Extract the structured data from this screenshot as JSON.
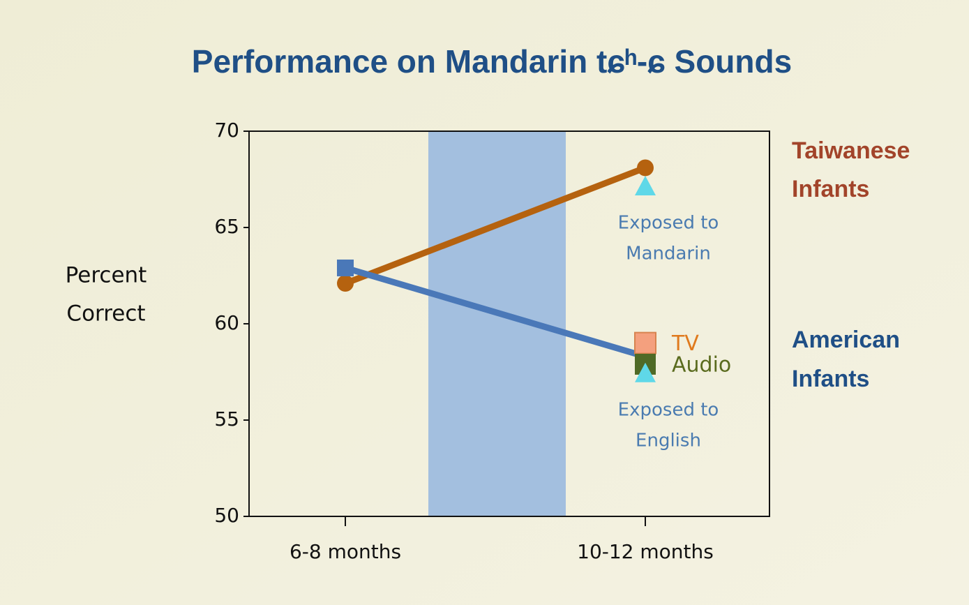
{
  "chart_data": {
    "type": "line",
    "title": "Performance on Mandarin tɕʰ-ɕ Sounds",
    "ylabel_lines": [
      "Percent",
      "Correct"
    ],
    "categories": [
      "6-8 months",
      "10-12 months"
    ],
    "ylim": [
      50,
      70
    ],
    "yticks": [
      50,
      55,
      60,
      65,
      70
    ],
    "grid": false,
    "series": [
      {
        "name_lines": [
          "Taiwanese",
          "Infants"
        ],
        "color": "#b5620f",
        "label_color": "#a2442a",
        "values": [
          62.1,
          68.1
        ]
      },
      {
        "name_lines": [
          "American",
          "Infants"
        ],
        "color": "#4a78b8",
        "label_color": "#1f4f86",
        "values": [
          62.9,
          58.3
        ]
      }
    ],
    "points": [
      {
        "label": "TV",
        "category": 1,
        "value": 59.0,
        "color": "#f4a07e",
        "label_color": "#e07a1e",
        "marker": "square"
      },
      {
        "label": "Audio",
        "category": 1,
        "value": 57.9,
        "color": "#4f6a26",
        "label_color": "#5a6b1e",
        "marker": "square"
      },
      {
        "note_lines": [
          "Exposed to",
          "Mandarin"
        ],
        "category": 1,
        "value": 67.1,
        "color": "#5fd8e8",
        "marker": "triangle"
      },
      {
        "note_lines": [
          "Exposed to",
          "English"
        ],
        "category": 1,
        "value": 57.4,
        "color": "#5fd8e8",
        "marker": "triangle"
      }
    ]
  }
}
